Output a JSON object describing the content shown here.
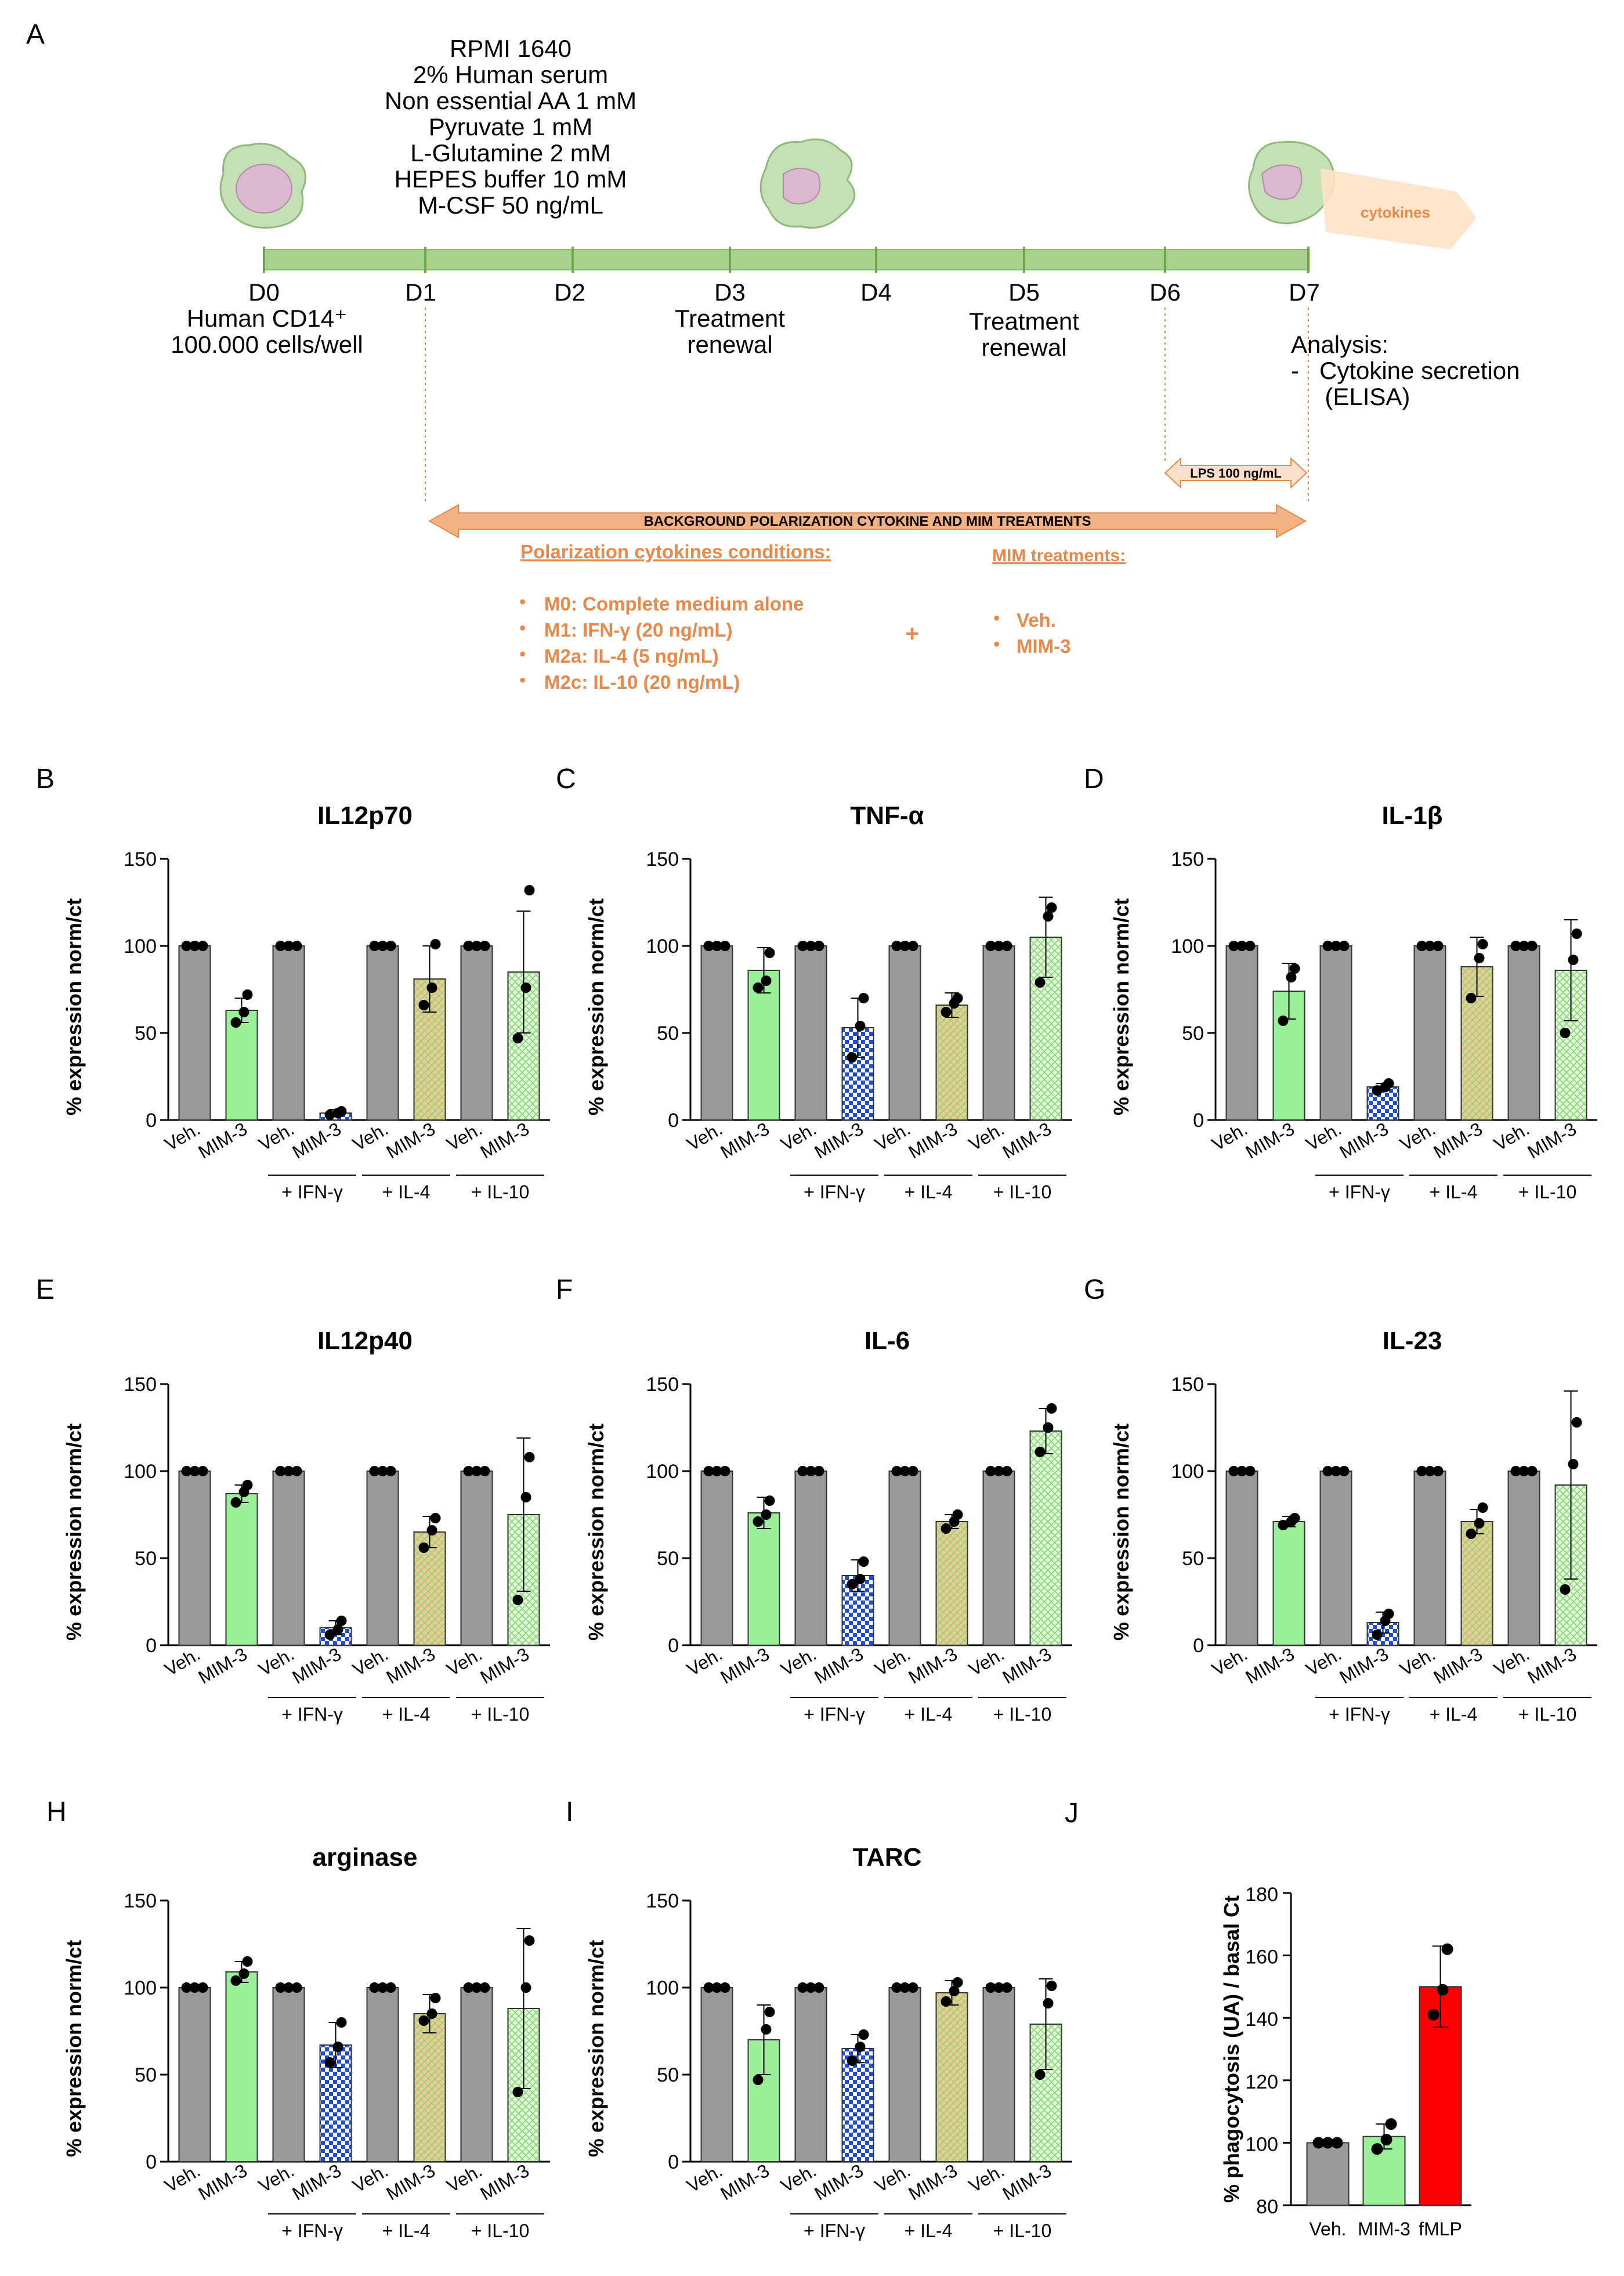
{
  "panel_labels": [
    "A",
    "B",
    "C",
    "D",
    "E",
    "F",
    "G",
    "H",
    "I",
    "J"
  ],
  "panel_a": {
    "medium": [
      "RPMI 1640",
      "2% Human serum",
      "Non essential AA 1 mM",
      "Pyruvate 1 mM",
      "L-Glutamine 2 mM",
      "HEPES buffer 10 mM",
      "M-CSF 50 ng/mL"
    ],
    "days": [
      "D0",
      "D1",
      "D2",
      "D3",
      "D4",
      "D5",
      "D6",
      "D7"
    ],
    "d0_note": [
      "Human CD14⁺",
      "100.000 cells/well"
    ],
    "d3_note": [
      "Treatment",
      "renewal"
    ],
    "d5_note": [
      "Treatment",
      "renewal"
    ],
    "analysis": [
      "Analysis:",
      "-   Cytokine secretion",
      "     (ELISA)"
    ],
    "cytokines_label": "cytokines",
    "lps_label": "LPS 100 ng/mL",
    "background_label": "BACKGROUND POLARIZATION CYTOKINE AND MIM TREATMENTS",
    "polarization_title": "Polarization cytokines conditions:",
    "polarization_items": [
      "M0: Complete medium alone",
      "M1: IFN-γ (20 ng/mL)",
      "M2a: IL-4 (5 ng/mL)",
      "M2c: IL-10 (20 ng/mL)"
    ],
    "plus": "+",
    "mim_title": "MIM treatments:",
    "mim_items": [
      "Veh.",
      "MIM-3"
    ],
    "colors": {
      "timeline": "#a9d18e",
      "orange": "#e8894a",
      "arrow_fill": "#f4b183",
      "cell": "#c5e0b4",
      "nucleus": "#d9b8d0"
    }
  },
  "chart_data": [
    {
      "panel": "B",
      "type": "bar",
      "title": "IL12p70",
      "ylabel": "% expression norm/ct",
      "ylim": [
        0,
        150
      ],
      "yticks": [
        0,
        50,
        100,
        150
      ],
      "categories": [
        "Veh.",
        "MIM-3",
        "Veh.",
        "MIM-3",
        "Veh.",
        "MIM-3",
        "Veh.",
        "MIM-3"
      ],
      "groups": [
        "+ IFN-γ",
        "+ IL-4",
        "+ IL-10"
      ],
      "values": [
        100,
        63,
        100,
        4,
        100,
        81,
        100,
        85
      ],
      "errors": [
        0,
        7,
        0,
        2,
        0,
        19,
        0,
        35
      ],
      "points": [
        [
          100,
          100,
          100
        ],
        [
          56,
          62,
          72
        ],
        [
          100,
          100,
          100
        ],
        [
          3,
          4,
          5
        ],
        [
          100,
          100,
          100
        ],
        [
          66,
          76,
          101
        ],
        [
          100,
          100,
          100
        ],
        [
          47,
          76,
          132
        ]
      ]
    },
    {
      "panel": "C",
      "type": "bar",
      "title": "TNF-α",
      "ylabel": "% expression norm/ct",
      "ylim": [
        0,
        150
      ],
      "yticks": [
        0,
        50,
        100,
        150
      ],
      "categories": [
        "Veh.",
        "MIM-3",
        "Veh.",
        "MIM-3",
        "Veh.",
        "MIM-3",
        "Veh.",
        "MIM-3"
      ],
      "groups": [
        "+ IFN-γ",
        "+ IL-4",
        "+ IL-10"
      ],
      "values": [
        100,
        86,
        100,
        53,
        100,
        66,
        100,
        105
      ],
      "errors": [
        0,
        13,
        0,
        17,
        0,
        7,
        0,
        23
      ],
      "points": [
        [
          100,
          100,
          100
        ],
        [
          76,
          80,
          96
        ],
        [
          100,
          100,
          100
        ],
        [
          36,
          54,
          70
        ],
        [
          100,
          100,
          100
        ],
        [
          62,
          67,
          70
        ],
        [
          100,
          100,
          100
        ],
        [
          79,
          117,
          122
        ]
      ]
    },
    {
      "panel": "D",
      "type": "bar",
      "title": "IL-1β",
      "ylabel": "% expression norm/ct",
      "ylim": [
        0,
        150
      ],
      "yticks": [
        0,
        50,
        100,
        150
      ],
      "categories": [
        "Veh.",
        "MIM-3",
        "Veh.",
        "MIM-3",
        "Veh.",
        "MIM-3",
        "Veh.",
        "MIM-3"
      ],
      "groups": [
        "+ IFN-γ",
        "+ IL-4",
        "+ IL-10"
      ],
      "values": [
        100,
        74,
        100,
        19,
        100,
        88,
        100,
        86
      ],
      "errors": [
        0,
        16,
        0,
        2,
        0,
        17,
        0,
        29
      ],
      "points": [
        [
          100,
          100,
          100
        ],
        [
          57,
          82,
          87
        ],
        [
          100,
          100,
          100
        ],
        [
          17,
          19,
          21
        ],
        [
          100,
          100,
          100
        ],
        [
          70,
          93,
          101
        ],
        [
          100,
          100,
          100
        ],
        [
          50,
          92,
          107
        ]
      ]
    },
    {
      "panel": "E",
      "type": "bar",
      "title": "IL12p40",
      "ylabel": "% expression norm/ct",
      "ylim": [
        0,
        150
      ],
      "yticks": [
        0,
        50,
        100,
        150
      ],
      "categories": [
        "Veh.",
        "MIM-3",
        "Veh.",
        "MIM-3",
        "Veh.",
        "MIM-3",
        "Veh.",
        "MIM-3"
      ],
      "groups": [
        "+ IFN-γ",
        "+ IL-4",
        "+ IL-10"
      ],
      "values": [
        100,
        87,
        100,
        10,
        100,
        65,
        100,
        75
      ],
      "errors": [
        0,
        5,
        0,
        4,
        0,
        9,
        0,
        44
      ],
      "points": [
        [
          100,
          100,
          100
        ],
        [
          82,
          88,
          92
        ],
        [
          100,
          100,
          100
        ],
        [
          6,
          9,
          14
        ],
        [
          100,
          100,
          100
        ],
        [
          56,
          66,
          73
        ],
        [
          100,
          100,
          100
        ],
        [
          26,
          85,
          108
        ]
      ]
    },
    {
      "panel": "F",
      "type": "bar",
      "title": "IL-6",
      "ylabel": "% expression norm/ct",
      "ylim": [
        0,
        150
      ],
      "yticks": [
        0,
        50,
        100,
        150
      ],
      "categories": [
        "Veh.",
        "MIM-3",
        "Veh.",
        "MIM-3",
        "Veh.",
        "MIM-3",
        "Veh.",
        "MIM-3"
      ],
      "groups": [
        "+ IFN-γ",
        "+ IL-4",
        "+ IL-10"
      ],
      "values": [
        100,
        76,
        100,
        40,
        100,
        71,
        100,
        123
      ],
      "errors": [
        0,
        9,
        0,
        9,
        0,
        4,
        0,
        13
      ],
      "points": [
        [
          100,
          100,
          100
        ],
        [
          71,
          75,
          83
        ],
        [
          100,
          100,
          100
        ],
        [
          35,
          38,
          48
        ],
        [
          100,
          100,
          100
        ],
        [
          67,
          71,
          75
        ],
        [
          100,
          100,
          100
        ],
        [
          111,
          125,
          136
        ]
      ]
    },
    {
      "panel": "G",
      "type": "bar",
      "title": "IL-23",
      "ylabel": "% expression norm/ct",
      "ylim": [
        0,
        150
      ],
      "yticks": [
        0,
        50,
        100,
        150
      ],
      "categories": [
        "Veh.",
        "MIM-3",
        "Veh.",
        "MIM-3",
        "Veh.",
        "MIM-3",
        "Veh.",
        "MIM-3"
      ],
      "groups": [
        "+ IFN-γ",
        "+ IL-4",
        "+ IL-10"
      ],
      "values": [
        100,
        71,
        100,
        13,
        100,
        71,
        100,
        92
      ],
      "errors": [
        0,
        3,
        0,
        6,
        0,
        7,
        0,
        54
      ],
      "points": [
        [
          100,
          100,
          100
        ],
        [
          69,
          71,
          73
        ],
        [
          100,
          100,
          100
        ],
        [
          6,
          14,
          18
        ],
        [
          100,
          100,
          100
        ],
        [
          64,
          70,
          79
        ],
        [
          100,
          100,
          100
        ],
        [
          32,
          104,
          128
        ]
      ]
    },
    {
      "panel": "H",
      "type": "bar",
      "title": "arginase",
      "ylabel": "% expression norm/ct",
      "ylim": [
        0,
        150
      ],
      "yticks": [
        0,
        50,
        100,
        150
      ],
      "categories": [
        "Veh.",
        "MIM-3",
        "Veh.",
        "MIM-3",
        "Veh.",
        "MIM-3",
        "Veh.",
        "MIM-3"
      ],
      "groups": [
        "+ IFN-γ",
        "+ IL-4",
        "+ IL-10"
      ],
      "values": [
        100,
        109,
        100,
        67,
        100,
        85,
        100,
        88
      ],
      "errors": [
        0,
        6,
        0,
        13,
        0,
        11,
        0,
        46
      ],
      "points": [
        [
          100,
          100,
          100
        ],
        [
          104,
          108,
          115
        ],
        [
          100,
          100,
          100
        ],
        [
          57,
          66,
          80
        ],
        [
          100,
          100,
          100
        ],
        [
          81,
          85,
          94
        ],
        [
          100,
          100,
          100
        ],
        [
          40,
          100,
          127
        ]
      ]
    },
    {
      "panel": "I",
      "type": "bar",
      "title": "TARC",
      "ylabel": "% expression norm/ct",
      "ylim": [
        0,
        150
      ],
      "yticks": [
        0,
        50,
        100,
        150
      ],
      "categories": [
        "Veh.",
        "MIM-3",
        "Veh.",
        "MIM-3",
        "Veh.",
        "MIM-3",
        "Veh.",
        "MIM-3"
      ],
      "groups": [
        "+ IFN-γ",
        "+ IL-4",
        "+ IL-10"
      ],
      "values": [
        100,
        70,
        100,
        65,
        100,
        97,
        100,
        79
      ],
      "errors": [
        0,
        20,
        0,
        8,
        0,
        7,
        0,
        26
      ],
      "points": [
        [
          100,
          100,
          100
        ],
        [
          47,
          76,
          86
        ],
        [
          100,
          100,
          100
        ],
        [
          58,
          66,
          73
        ],
        [
          100,
          100,
          100
        ],
        [
          92,
          98,
          103
        ],
        [
          100,
          100,
          100
        ],
        [
          50,
          91,
          101
        ]
      ]
    },
    {
      "panel": "J",
      "type": "bar",
      "title": "",
      "ylabel": "% phagocytosis (UA) / basal Ct",
      "ylim": [
        80,
        180
      ],
      "yticks": [
        80,
        100,
        120,
        140,
        160,
        180
      ],
      "categories": [
        "Veh.",
        "MIM-3",
        "fMLP"
      ],
      "values": [
        100,
        102,
        150
      ],
      "errors": [
        0,
        4,
        13
      ],
      "points": [
        [
          100,
          100,
          100
        ],
        [
          98,
          101,
          106
        ],
        [
          141,
          149,
          162
        ]
      ]
    }
  ],
  "bar_colors": {
    "veh": "#999999",
    "mim0": "#99f099",
    "ifn": "#1f4fd1",
    "il4": "#cddc8a",
    "il10": "#c6f3b8",
    "fmlp": "#ff0000"
  }
}
